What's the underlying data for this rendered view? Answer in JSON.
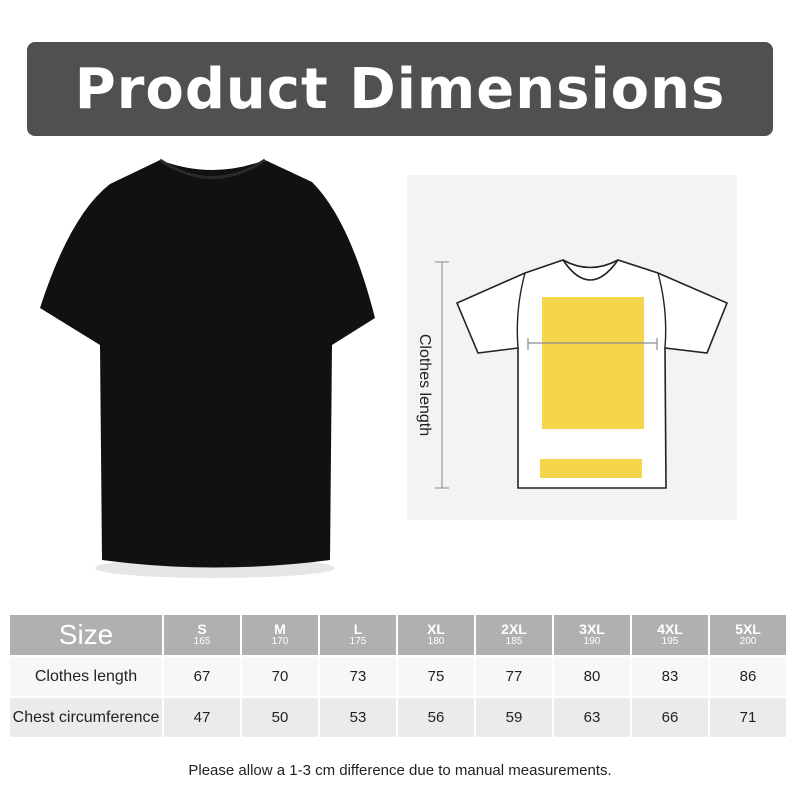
{
  "title": "Product Dimensions",
  "diagram": {
    "length_label": "Clothes length",
    "highlight_color": "#f5d54c"
  },
  "table": {
    "header_label": "Size",
    "sizes": [
      {
        "size": "S",
        "height": "165"
      },
      {
        "size": "M",
        "height": "170"
      },
      {
        "size": "L",
        "height": "175"
      },
      {
        "size": "XL",
        "height": "180"
      },
      {
        "size": "2XL",
        "height": "185"
      },
      {
        "size": "3XL",
        "height": "190"
      },
      {
        "size": "4XL",
        "height": "195"
      },
      {
        "size": "5XL",
        "height": "200"
      }
    ],
    "rows": [
      {
        "label": "Clothes length",
        "values": [
          "67",
          "70",
          "73",
          "75",
          "77",
          "80",
          "83",
          "86"
        ]
      },
      {
        "label": "Chest circumference",
        "values": [
          "47",
          "50",
          "53",
          "56",
          "59",
          "63",
          "66",
          "71"
        ]
      }
    ]
  },
  "note": "Please allow a 1-3 cm difference due to manual measurements."
}
